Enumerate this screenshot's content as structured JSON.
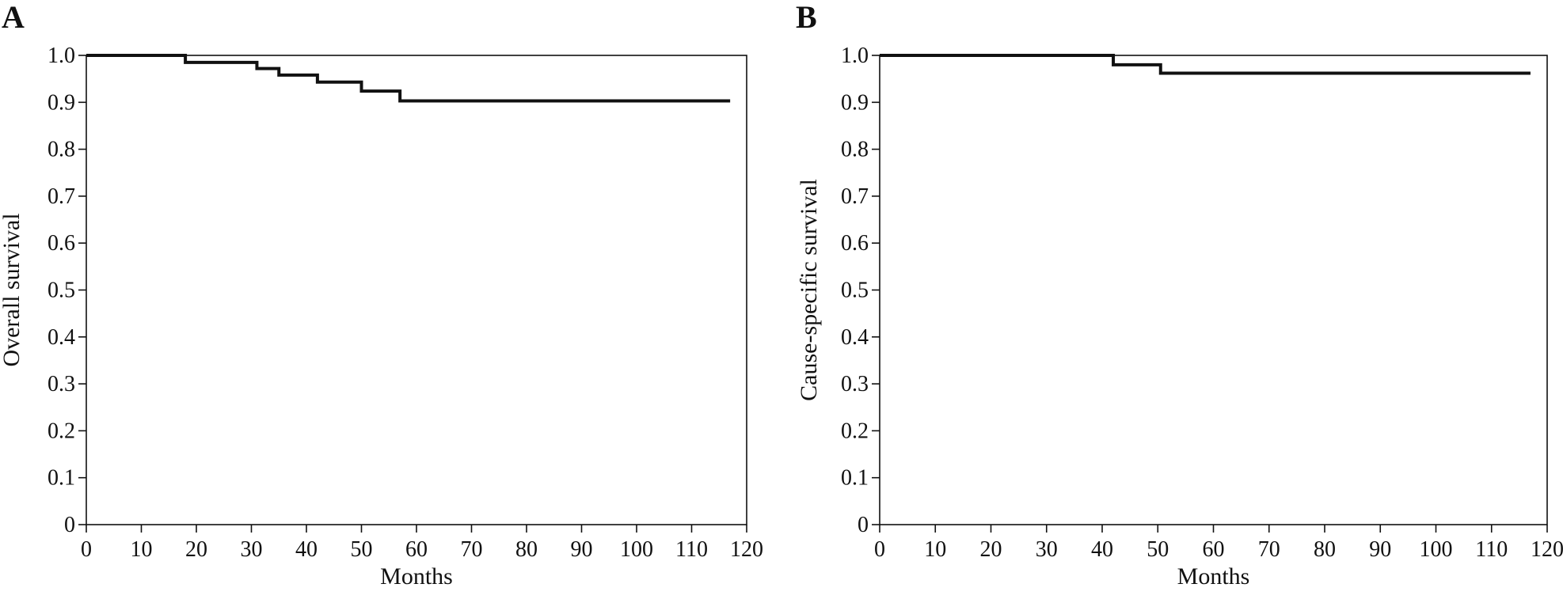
{
  "chart_data": [
    {
      "type": "line",
      "step": "post",
      "panel_label": "A",
      "xlabel": "Months",
      "ylabel": "Overall survival",
      "xlim": [
        0,
        120
      ],
      "ylim": [
        0,
        1.0
      ],
      "xticks": [
        0,
        10,
        20,
        30,
        40,
        50,
        60,
        70,
        80,
        90,
        100,
        110,
        120
      ],
      "yticks": [
        0,
        0.1,
        0.2,
        0.3,
        0.4,
        0.5,
        0.6,
        0.7,
        0.8,
        0.9,
        1.0
      ],
      "ytick_labels": [
        "0",
        "0.1",
        "0.2",
        "0.3",
        "0.4",
        "0.5",
        "0.6",
        "0.7",
        "0.8",
        "0.9",
        "1.0"
      ],
      "xtick_labels": [
        "0",
        "10",
        "20",
        "30",
        "40",
        "50",
        "60",
        "70",
        "80",
        "90",
        "100",
        "110",
        "120"
      ],
      "grid": false,
      "series": [
        {
          "x": [
            0,
            18,
            31,
            35,
            42,
            50,
            57,
            117
          ],
          "y": [
            1.0,
            0.985,
            0.972,
            0.958,
            0.943,
            0.924,
            0.903,
            0.903
          ]
        }
      ]
    },
    {
      "type": "line",
      "step": "post",
      "panel_label": "B",
      "xlabel": "Months",
      "ylabel": "Cause-specific survival",
      "xlim": [
        0,
        120
      ],
      "ylim": [
        0,
        1.0
      ],
      "xticks": [
        0,
        10,
        20,
        30,
        40,
        50,
        60,
        70,
        80,
        90,
        100,
        110,
        120
      ],
      "yticks": [
        0,
        0.1,
        0.2,
        0.3,
        0.4,
        0.5,
        0.6,
        0.7,
        0.8,
        0.9,
        1.0
      ],
      "ytick_labels": [
        "0",
        "0.1",
        "0.2",
        "0.3",
        "0.4",
        "0.5",
        "0.6",
        "0.7",
        "0.8",
        "0.9",
        "1.0"
      ],
      "xtick_labels": [
        "0",
        "10",
        "20",
        "30",
        "40",
        "50",
        "60",
        "70",
        "80",
        "90",
        "100",
        "110",
        "120"
      ],
      "grid": false,
      "series": [
        {
          "x": [
            0,
            42,
            50.5,
            117
          ],
          "y": [
            1.0,
            0.98,
            0.962,
            0.962
          ]
        }
      ]
    }
  ]
}
